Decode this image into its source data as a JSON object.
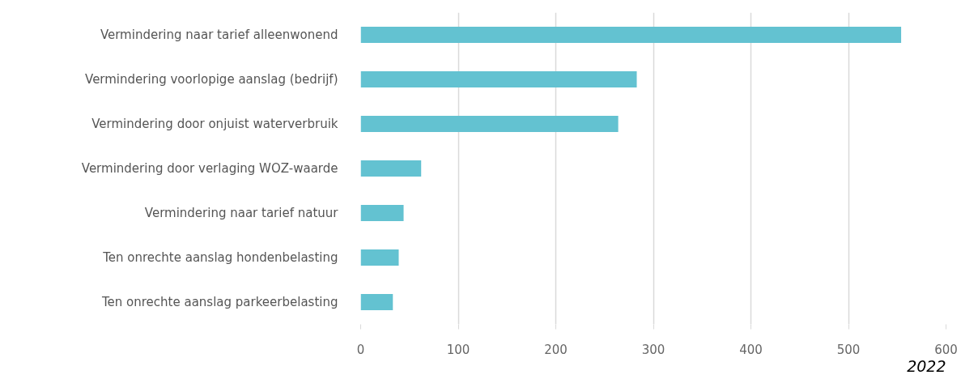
{
  "chart_data": {
    "type": "bar",
    "orientation": "horizontal",
    "categories": [
      "Vermindering naar tarief alleenwonend",
      "Vermindering voorlopige aanslag (bedrijf)",
      "Vermindering door onjuist waterverbruik",
      "Vermindering door verlaging WOZ-waarde",
      "Vermindering naar tarief natuur",
      "Ten onrechte aanslag hondenbelasting",
      "Ten onrechte aanslag parkeerbelasting"
    ],
    "values": [
      554,
      283,
      264,
      62,
      44,
      39,
      33
    ],
    "color": "#63c2d1",
    "xlim": [
      0,
      600
    ],
    "xticks": [
      0,
      100,
      200,
      300,
      400,
      500,
      600
    ],
    "grid": "x",
    "annotations": [
      "2022"
    ]
  }
}
